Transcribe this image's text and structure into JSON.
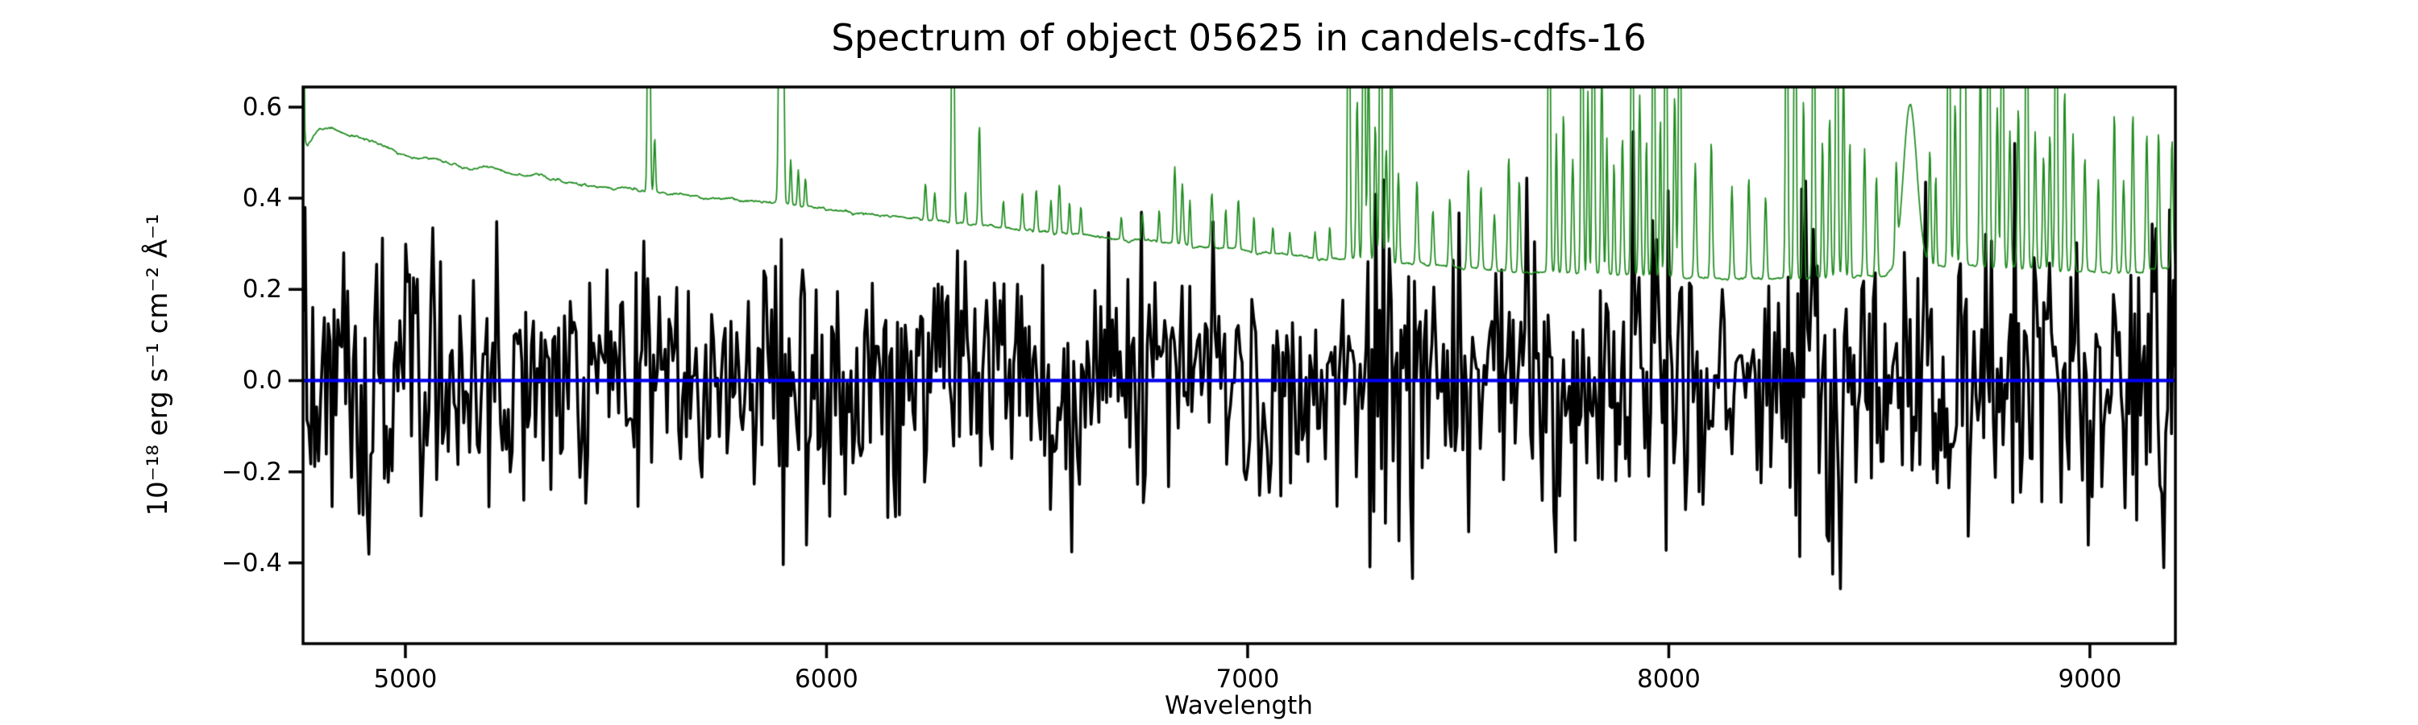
{
  "figure": {
    "background": "#ffffff"
  },
  "chart_data": {
    "type": "line",
    "title": "Spectrum of object 05625 in candels-cdfs-16",
    "xlabel": "Wavelength",
    "ylabel": "10⁻¹⁸ erg s⁻¹ cm⁻² Å⁻¹",
    "xlim": [
      4757,
      9203
    ],
    "ylim": [
      -0.577,
      0.644
    ],
    "grid": false,
    "legend": "none",
    "xticks": [
      {
        "value": 5000,
        "label": "5000"
      },
      {
        "value": 6000,
        "label": "6000"
      },
      {
        "value": 7000,
        "label": "7000"
      },
      {
        "value": 8000,
        "label": "8000"
      },
      {
        "value": 9000,
        "label": "9000"
      }
    ],
    "yticks": [
      {
        "value": -0.4,
        "label": "−0.4"
      },
      {
        "value": -0.2,
        "label": "−0.2"
      },
      {
        "value": 0.0,
        "label": "0.0"
      },
      {
        "value": 0.2,
        "label": "0.2"
      },
      {
        "value": 0.4,
        "label": "0.4"
      },
      {
        "value": 0.6,
        "label": "0.6"
      }
    ],
    "axis_color": "#000000",
    "series": [
      {
        "name": "observed-flux",
        "description": "very noisy black spectrum scattered about zero; per-pixel gaussian noise, larger amplitude at blue end and inside sky-line bands",
        "color": "#000000",
        "linewidth": 3.6,
        "kind": "noise",
        "noise": {
          "seed": 1337,
          "n_points": 968,
          "base_sigma": 0.128,
          "blue_end_boost": {
            "amount": 0.035,
            "until_wavelength": 5900,
            "ramp": 1100
          },
          "sky_band_boost": 0.062,
          "clamp": [
            -0.555,
            0.62
          ]
        }
      },
      {
        "name": "error-spectrum",
        "description": "green 1-sigma error curve: smooth declining continuum plus narrow sky emission spikes (many clipped at top of axes)",
        "color": "#1e8c1e",
        "linewidth": 1.7,
        "kind": "continuum+spikes",
        "sample_step_angstrom": 1.5,
        "wiggle": {
          "seed": 77,
          "sigma": 0.012,
          "smooth": 0.92
        },
        "continuum_anchors": [
          [
            4757,
            0.53
          ],
          [
            4768,
            0.515
          ],
          [
            4790,
            0.545
          ],
          [
            4820,
            0.553
          ],
          [
            4850,
            0.548
          ],
          [
            4880,
            0.538
          ],
          [
            4920,
            0.525
          ],
          [
            4960,
            0.508
          ],
          [
            5000,
            0.497
          ],
          [
            5050,
            0.487
          ],
          [
            5100,
            0.475
          ],
          [
            5150,
            0.465
          ],
          [
            5200,
            0.468
          ],
          [
            5240,
            0.455
          ],
          [
            5290,
            0.448
          ],
          [
            5340,
            0.443
          ],
          [
            5390,
            0.437
          ],
          [
            5440,
            0.43
          ],
          [
            5490,
            0.423
          ],
          [
            5540,
            0.417
          ],
          [
            5590,
            0.412
          ],
          [
            5640,
            0.407
          ],
          [
            5700,
            0.402
          ],
          [
            5760,
            0.398
          ],
          [
            5820,
            0.394
          ],
          [
            5880,
            0.39
          ],
          [
            5940,
            0.383
          ],
          [
            6000,
            0.376
          ],
          [
            6060,
            0.37
          ],
          [
            6120,
            0.364
          ],
          [
            6180,
            0.358
          ],
          [
            6240,
            0.352
          ],
          [
            6300,
            0.347
          ],
          [
            6360,
            0.341
          ],
          [
            6420,
            0.336
          ],
          [
            6480,
            0.33
          ],
          [
            6540,
            0.325
          ],
          [
            6600,
            0.319
          ],
          [
            6660,
            0.314
          ],
          [
            6720,
            0.309
          ],
          [
            6780,
            0.304
          ],
          [
            6840,
            0.298
          ],
          [
            6900,
            0.293
          ],
          [
            6960,
            0.288
          ],
          [
            7020,
            0.283
          ],
          [
            7080,
            0.278
          ],
          [
            7140,
            0.273
          ],
          [
            7200,
            0.268
          ],
          [
            7260,
            0.264
          ],
          [
            7320,
            0.26
          ],
          [
            7380,
            0.256
          ],
          [
            7440,
            0.252
          ],
          [
            7500,
            0.248
          ],
          [
            7560,
            0.245
          ],
          [
            7620,
            0.242
          ],
          [
            7680,
            0.239
          ],
          [
            7740,
            0.237
          ],
          [
            7800,
            0.235
          ],
          [
            7860,
            0.233
          ],
          [
            7920,
            0.231
          ],
          [
            7980,
            0.229
          ],
          [
            8040,
            0.228
          ],
          [
            8100,
            0.227
          ],
          [
            8160,
            0.226
          ],
          [
            8220,
            0.225
          ],
          [
            8280,
            0.225
          ],
          [
            8340,
            0.226
          ],
          [
            8400,
            0.227
          ],
          [
            8460,
            0.229
          ],
          [
            8520,
            0.235
          ],
          [
            8560,
            0.24
          ],
          [
            8600,
            0.25
          ],
          [
            8650,
            0.255
          ],
          [
            8700,
            0.254
          ],
          [
            8750,
            0.251
          ],
          [
            8800,
            0.248
          ],
          [
            8850,
            0.246
          ],
          [
            8900,
            0.244
          ],
          [
            8950,
            0.242
          ],
          [
            9000,
            0.24
          ],
          [
            9050,
            0.238
          ],
          [
            9100,
            0.237
          ],
          [
            9150,
            0.243
          ],
          [
            9203,
            0.255
          ]
        ],
        "spikes": [
          [
            4757,
            0.6,
            1.8
          ],
          [
            5578,
            0.9,
            2.5
          ],
          [
            5592,
            0.12,
            2.0
          ],
          [
            5890,
            0.9,
            3.0
          ],
          [
            5898,
            0.35,
            2.0
          ],
          [
            5915,
            0.1,
            2.0
          ],
          [
            5933,
            0.08,
            2.0
          ],
          [
            5950,
            0.06,
            2.0
          ],
          [
            6235,
            0.08,
            2.5
          ],
          [
            6257,
            0.06,
            2.0
          ],
          [
            6300,
            0.9,
            2.5
          ],
          [
            6330,
            0.07,
            2.0
          ],
          [
            6363,
            0.22,
            2.5
          ],
          [
            6420,
            0.06,
            2.0
          ],
          [
            6465,
            0.08,
            2.0
          ],
          [
            6498,
            0.09,
            2.5
          ],
          [
            6533,
            0.07,
            2.0
          ],
          [
            6553,
            0.11,
            2.5
          ],
          [
            6577,
            0.07,
            2.0
          ],
          [
            6604,
            0.06,
            2.0
          ],
          [
            6700,
            0.05,
            2.0
          ],
          [
            6750,
            0.06,
            2.0
          ],
          [
            6790,
            0.07,
            2.0
          ],
          [
            6827,
            0.17,
            2.5
          ],
          [
            6845,
            0.13,
            2.5
          ],
          [
            6863,
            0.1,
            2.0
          ],
          [
            6915,
            0.12,
            2.5
          ],
          [
            6948,
            0.09,
            2.0
          ],
          [
            6978,
            0.11,
            2.5
          ],
          [
            7015,
            0.08,
            2.0
          ],
          [
            7060,
            0.06,
            2.0
          ],
          [
            7100,
            0.05,
            2.0
          ],
          [
            7160,
            0.06,
            2.0
          ],
          [
            7195,
            0.07,
            2.0
          ],
          [
            7240,
            0.9,
            2.5
          ],
          [
            7260,
            0.35,
            2.5
          ],
          [
            7276,
            0.9,
            2.5
          ],
          [
            7287,
            0.45,
            2.5
          ],
          [
            7303,
            0.3,
            2.5
          ],
          [
            7316,
            0.9,
            2.5
          ],
          [
            7329,
            0.25,
            2.5
          ],
          [
            7341,
            0.55,
            2.5
          ],
          [
            7358,
            0.2,
            2.5
          ],
          [
            7402,
            0.18,
            2.5
          ],
          [
            7440,
            0.12,
            2.5
          ],
          [
            7480,
            0.15,
            2.5
          ],
          [
            7524,
            0.22,
            2.5
          ],
          [
            7554,
            0.18,
            2.5
          ],
          [
            7586,
            0.12,
            2.5
          ],
          [
            7620,
            0.25,
            2.5
          ],
          [
            7645,
            0.2,
            2.5
          ],
          [
            7716,
            0.9,
            2.5
          ],
          [
            7733,
            0.3,
            2.0
          ],
          [
            7750,
            0.35,
            2.5
          ],
          [
            7772,
            0.25,
            2.5
          ],
          [
            7794,
            0.9,
            2.5
          ],
          [
            7808,
            0.4,
            2.0
          ],
          [
            7821,
            0.9,
            2.5
          ],
          [
            7841,
            0.45,
            2.5
          ],
          [
            7853,
            0.3,
            2.0
          ],
          [
            7870,
            0.25,
            2.0
          ],
          [
            7890,
            0.3,
            2.5
          ],
          [
            7913,
            0.9,
            2.5
          ],
          [
            7931,
            0.4,
            2.5
          ],
          [
            7947,
            0.3,
            2.0
          ],
          [
            7964,
            0.9,
            2.5
          ],
          [
            7980,
            0.35,
            2.0
          ],
          [
            7993,
            0.9,
            2.5
          ],
          [
            8014,
            0.4,
            2.5
          ],
          [
            8026,
            0.9,
            2.5
          ],
          [
            8063,
            0.25,
            2.5
          ],
          [
            8101,
            0.3,
            2.5
          ],
          [
            8150,
            0.2,
            2.5
          ],
          [
            8190,
            0.22,
            2.5
          ],
          [
            8230,
            0.18,
            2.5
          ],
          [
            8280,
            0.9,
            2.5
          ],
          [
            8300,
            0.9,
            2.5
          ],
          [
            8320,
            0.4,
            2.0
          ],
          [
            8344,
            0.9,
            2.5
          ],
          [
            8365,
            0.3,
            2.0
          ],
          [
            8382,
            0.35,
            2.5
          ],
          [
            8399,
            0.9,
            2.5
          ],
          [
            8415,
            0.45,
            2.5
          ],
          [
            8430,
            0.3,
            2.0
          ],
          [
            8465,
            0.28,
            2.5
          ],
          [
            8493,
            0.22,
            2.5
          ],
          [
            8540,
            0.2,
            2.5
          ],
          [
            8573,
            0.36,
            16.0
          ],
          [
            8620,
            0.25,
            2.5
          ],
          [
            8634,
            0.2,
            2.0
          ],
          [
            8665,
            0.9,
            2.5
          ],
          [
            8680,
            0.35,
            2.5
          ],
          [
            8696,
            0.9,
            2.5
          ],
          [
            8702,
            0.9,
            2.5
          ],
          [
            8740,
            0.45,
            2.5
          ],
          [
            8760,
            0.9,
            2.5
          ],
          [
            8780,
            0.35,
            2.5
          ],
          [
            8792,
            0.9,
            2.5
          ],
          [
            8810,
            0.3,
            2.5
          ],
          [
            8830,
            0.35,
            2.5
          ],
          [
            8850,
            0.9,
            2.5
          ],
          [
            8870,
            0.3,
            2.5
          ],
          [
            8890,
            0.25,
            2.5
          ],
          [
            8905,
            0.3,
            2.5
          ],
          [
            8920,
            0.9,
            2.5
          ],
          [
            8940,
            0.4,
            2.5
          ],
          [
            8960,
            0.3,
            2.5
          ],
          [
            8988,
            0.25,
            2.5
          ],
          [
            9020,
            0.2,
            2.5
          ],
          [
            9058,
            0.35,
            2.5
          ],
          [
            9080,
            0.2,
            2.5
          ],
          [
            9102,
            0.35,
            2.5
          ],
          [
            9135,
            0.3,
            2.5
          ],
          [
            9163,
            0.3,
            2.5
          ],
          [
            9195,
            0.28,
            2.5
          ]
        ]
      },
      {
        "name": "model-fit",
        "description": "flat blue model line at zero flux, drawn on top",
        "color": "#0000ee",
        "linewidth": 4.2,
        "kind": "constant",
        "value": 0.0
      }
    ]
  }
}
